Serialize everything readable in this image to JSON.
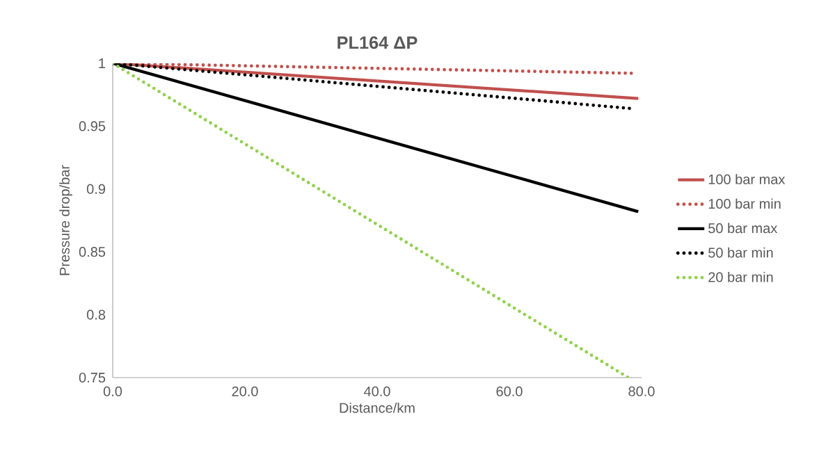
{
  "chart_data": {
    "type": "line",
    "title": "PL164 ΔP",
    "xlabel": "Distance/km",
    "ylabel": "Pressure drop/bar",
    "xlim": [
      0,
      80
    ],
    "ylim": [
      0.75,
      1
    ],
    "xticks": [
      {
        "value": 0,
        "label": "0.0"
      },
      {
        "value": 20,
        "label": "20.0"
      },
      {
        "value": 40,
        "label": "40.0"
      },
      {
        "value": 60,
        "label": "60.0"
      },
      {
        "value": 80,
        "label": "80.0"
      }
    ],
    "yticks": [
      0.75,
      0.8,
      0.85,
      0.9,
      0.95,
      1
    ],
    "grid": false,
    "legend": "right",
    "series": [
      {
        "name": "100 bar max",
        "color": "#c0504d",
        "line_style": "solid",
        "x": [
          0,
          79.5
        ],
        "values": [
          1,
          0.972
        ]
      },
      {
        "name": "100 bar min",
        "color": "#c0504d",
        "line_style": "dotted",
        "x": [
          0,
          79
        ],
        "values": [
          1,
          0.992
        ]
      },
      {
        "name": "50 bar max",
        "color": "#000000",
        "line_style": "solid",
        "x": [
          0,
          79.5
        ],
        "values": [
          1,
          0.882
        ]
      },
      {
        "name": "50 bar min",
        "color": "#000000",
        "line_style": "dotted",
        "x": [
          0,
          78.5
        ],
        "values": [
          1,
          0.964
        ]
      },
      {
        "name": "20 bar min",
        "color": "#92d050",
        "line_style": "dotted",
        "x": [
          0,
          78
        ],
        "values": [
          1,
          0.75
        ]
      }
    ]
  }
}
